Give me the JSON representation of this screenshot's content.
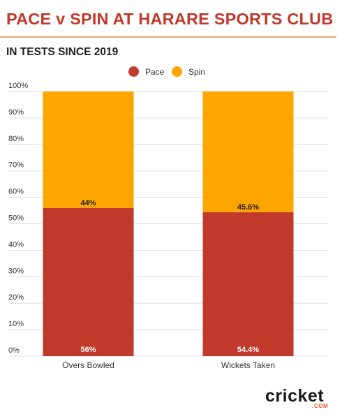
{
  "header": {
    "title": "PACE v SPIN AT HARARE SPORTS CLUB",
    "subtitle": "IN TESTS SINCE 2019"
  },
  "colors": {
    "title": "#c0392b",
    "rule": "#e8a87c",
    "pace": "#c0392b",
    "spin": "#ffa500",
    "grid": "#dddddd",
    "axis_text": "#333333"
  },
  "logo": {
    "text": "cricket",
    "subtext": ".COM"
  },
  "chart_data": {
    "type": "bar",
    "stacked": true,
    "categories": [
      "Overs Bowled",
      "Wickets Taken"
    ],
    "series": [
      {
        "name": "Pace",
        "values": [
          56,
          54.4
        ],
        "labels": [
          "56%",
          "54.4%"
        ]
      },
      {
        "name": "Spin",
        "values": [
          44,
          45.6
        ],
        "labels": [
          "44%",
          "45.6%"
        ]
      }
    ],
    "ylim": [
      0,
      100
    ],
    "yticks": [
      0,
      10,
      20,
      30,
      40,
      50,
      60,
      70,
      80,
      90,
      100
    ],
    "ytick_labels": [
      "0%",
      "10%",
      "20%",
      "30%",
      "40%",
      "50%",
      "60%",
      "70%",
      "80%",
      "90%",
      "100%"
    ],
    "grid": true,
    "legend_position": "top-center"
  }
}
